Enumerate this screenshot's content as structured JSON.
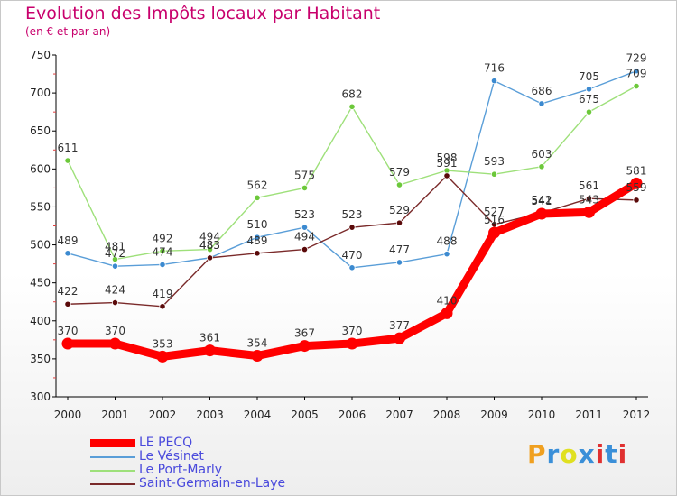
{
  "header": {
    "title": "Evolution des Impôts locaux par Habitant",
    "subtitle": "(en € et par an)"
  },
  "brand": {
    "letters": [
      "P",
      "r",
      "o",
      "x",
      "i",
      "t",
      "i"
    ],
    "colors": [
      "#f0a020",
      "#3a8fd8",
      "#e0e020",
      "#3a8fd8",
      "#e03030",
      "#3a8fd8",
      "#e03030"
    ]
  },
  "chart_data": {
    "type": "line",
    "title": "Evolution des Impôts locaux par Habitant",
    "subtitle": "(en € et par an)",
    "xlabel": "",
    "ylabel": "",
    "categories": [
      "2000",
      "2001",
      "2002",
      "2003",
      "2004",
      "2005",
      "2006",
      "2007",
      "2008",
      "2009",
      "2010",
      "2011",
      "2012"
    ],
    "ylim": [
      300,
      750
    ],
    "yticks": [
      300,
      350,
      400,
      450,
      500,
      550,
      600,
      650,
      700,
      750
    ],
    "grid": false,
    "legend_position": "bottom-left",
    "series": [
      {
        "name": "Le Vésinet",
        "color": "#5a9ed8",
        "marker": "#3c8ad0",
        "values": [
          489,
          472,
          474,
          483,
          510,
          523,
          470,
          477,
          488,
          716,
          686,
          705,
          729
        ],
        "labels": [
          "489",
          "472",
          "474",
          "483",
          "510",
          "523",
          "470",
          "477",
          "488",
          "716",
          "686",
          "705",
          "729"
        ]
      },
      {
        "name": "Le Port-Marly",
        "color": "#9ee07a",
        "marker": "#6cc83a",
        "values": [
          611,
          481,
          492,
          494,
          562,
          575,
          682,
          579,
          598,
          593,
          603,
          675,
          709
        ],
        "labels": [
          "611",
          "481",
          "492",
          "494",
          "562",
          "575",
          "682",
          "579",
          "598",
          "593",
          "603",
          "675",
          "709"
        ]
      },
      {
        "name": "Saint-Germain-en-Laye",
        "color": "#7a2a2a",
        "marker": "#5a0a0a",
        "values": [
          422,
          424,
          419,
          483,
          489,
          494,
          523,
          529,
          591,
          527,
          542,
          561,
          559
        ],
        "labels": [
          "422",
          "424",
          "419",
          "483",
          "489",
          "494",
          "523",
          "529",
          "591",
          "527",
          "542",
          "561",
          "559"
        ]
      },
      {
        "name": "LE PECQ",
        "color": "#ff0000",
        "marker": "#ff0000",
        "values": [
          370,
          370,
          353,
          361,
          354,
          367,
          370,
          377,
          410,
          516,
          541,
          543,
          581
        ],
        "labels": [
          "370",
          "370",
          "353",
          "361",
          "354",
          "367",
          "370",
          "377",
          "410",
          "516",
          "541",
          "543",
          "581"
        ]
      }
    ],
    "legend_order": [
      "LE PECQ",
      "Le Vésinet",
      "Le Port-Marly",
      "Saint-Germain-en-Laye"
    ]
  }
}
